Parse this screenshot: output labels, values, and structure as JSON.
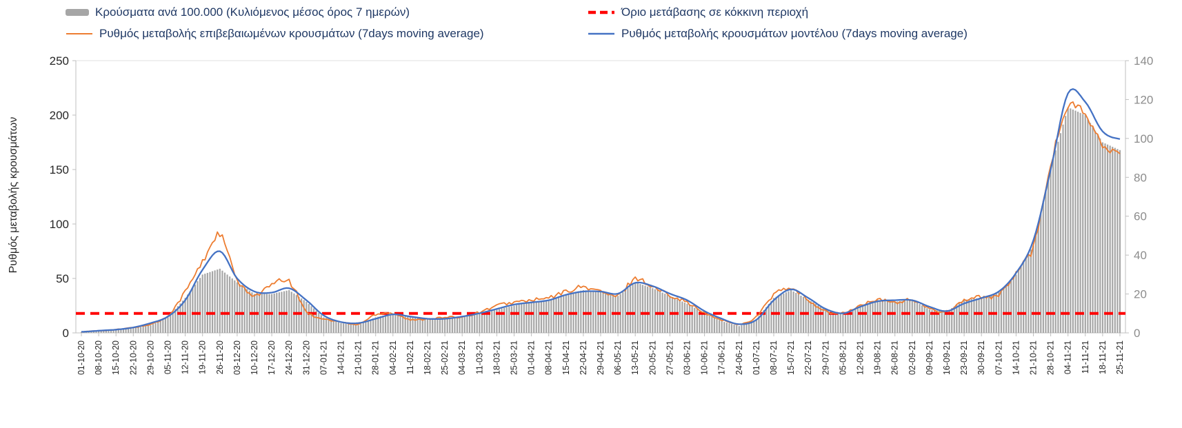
{
  "legend": {
    "bars_label": "Κρούσματα ανά 100.000 (Κυλιόμενος μέσος όρος 7 ημερών)",
    "threshold_label": "Όριο μετάβασης σε κόκκινη περιοχή",
    "confirmed_label": "Ρυθμός μεταβολής επιβεβαιωμένων κρουσμάτων (7days moving average)",
    "model_label": "Ρυθμός μεταβολής κρουσμάτων μοντέλου (7days moving average)"
  },
  "chart_data": {
    "type": "combo bar+line",
    "title": "",
    "ylabel_left": "Ρυθμός μεταβολής κρουσμάτων",
    "ylabel_right": "",
    "ylim_left": [
      0,
      250
    ],
    "ylim_right": [
      0,
      140
    ],
    "left_ticks": [
      0,
      50,
      100,
      150,
      200,
      250
    ],
    "right_ticks": [
      0,
      20,
      40,
      60,
      80,
      100,
      120,
      140
    ],
    "grid": false,
    "legend_position": "top",
    "categories": [
      "01-10-20",
      "08-10-20",
      "15-10-20",
      "22-10-20",
      "29-10-20",
      "05-11-20",
      "12-11-20",
      "19-11-20",
      "26-11-20",
      "03-12-20",
      "10-12-20",
      "17-12-20",
      "24-12-20",
      "31-12-20",
      "07-01-21",
      "14-01-21",
      "21-01-21",
      "28-01-21",
      "04-02-21",
      "11-02-21",
      "18-02-21",
      "25-02-21",
      "04-03-21",
      "11-03-21",
      "18-03-21",
      "25-03-21",
      "01-04-21",
      "08-04-21",
      "15-04-21",
      "22-04-21",
      "29-04-21",
      "06-05-21",
      "13-05-21",
      "20-05-21",
      "27-05-21",
      "03-06-21",
      "10-06-21",
      "17-06-21",
      "24-06-21",
      "01-07-21",
      "08-07-21",
      "15-07-21",
      "22-07-21",
      "29-07-21",
      "05-08-21",
      "12-08-21",
      "19-08-21",
      "26-08-21",
      "02-09-21",
      "09-09-21",
      "16-09-21",
      "23-09-21",
      "30-09-21",
      "07-10-21",
      "14-10-21",
      "21-10-21",
      "28-10-21",
      "04-11-21",
      "11-11-21",
      "18-11-21",
      "25-11-21"
    ],
    "series": [
      {
        "name": "Κρούσματα ανά 100.000 (Κυλιόμενος μέσος όρος 7 ημερών)",
        "type": "bar",
        "axis": "right",
        "color": "#A6A6A6",
        "values": [
          0.5,
          1,
          1.5,
          2.5,
          4,
          8,
          18,
          30,
          33,
          26,
          20,
          20,
          22,
          16,
          8,
          5,
          4,
          8,
          10,
          8,
          7,
          7.5,
          8,
          10,
          12,
          14,
          16,
          17,
          20,
          22,
          21,
          19,
          26,
          23,
          19,
          15,
          10,
          6,
          3.5,
          7,
          18,
          22,
          17,
          12,
          10,
          14,
          17,
          16,
          17,
          12,
          11,
          17,
          18,
          21,
          30,
          45,
          85,
          116,
          112,
          98,
          94
        ]
      },
      {
        "name": "Ρυθμός μεταβολής επιβεβαιωμένων κρουσμάτων (7days moving average)",
        "type": "line",
        "axis": "left",
        "color": "#ED7D31",
        "values": [
          1,
          2,
          3,
          5,
          8,
          16,
          38,
          65,
          90,
          48,
          35,
          44,
          47,
          20,
          13,
          10,
          8,
          17,
          18,
          12,
          13,
          14,
          15,
          19,
          25,
          28,
          30,
          32,
          38,
          42,
          38,
          34,
          50,
          42,
          35,
          28,
          18,
          12,
          8,
          15,
          35,
          40,
          30,
          20,
          18,
          25,
          30,
          28,
          30,
          22,
          20,
          30,
          33,
          35,
          55,
          80,
          155,
          207,
          200,
          172,
          165
        ]
      },
      {
        "name": "Ρυθμός μεταβολής κρουσμάτων μοντέλου (7days moving average)",
        "type": "line",
        "axis": "left",
        "color": "#4472C4",
        "values": [
          1,
          2,
          3,
          5,
          9,
          15,
          30,
          58,
          75,
          50,
          38,
          37,
          41,
          30,
          16,
          10,
          9,
          13,
          17,
          15,
          13,
          13,
          15,
          18,
          22,
          26,
          28,
          30,
          35,
          38,
          38,
          36,
          46,
          43,
          36,
          30,
          20,
          13,
          8,
          12,
          30,
          40,
          32,
          22,
          18,
          24,
          29,
          30,
          30,
          24,
          20,
          27,
          32,
          38,
          55,
          85,
          150,
          220,
          212,
          185,
          178
        ]
      },
      {
        "name": "Όριο μετάβασης σε κόκκινη περιοχή",
        "type": "dashed-threshold",
        "axis": "right",
        "color": "#FF0000",
        "value": 10
      }
    ]
  }
}
